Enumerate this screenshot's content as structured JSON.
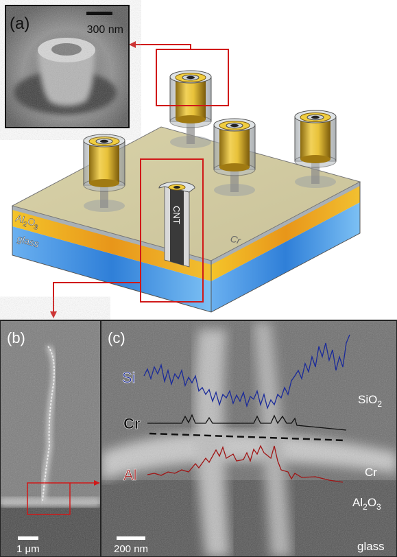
{
  "panel_a": {
    "label": "(a)",
    "scale_bar": "300 nm"
  },
  "schematic": {
    "layers": {
      "al2o3": [
        "Al",
        "2",
        "O",
        "3"
      ],
      "glass": "glass",
      "cr": "Cr"
    },
    "cnt": "CNT"
  },
  "panel_b": {
    "label": "(b)",
    "scale_bar": "1 μm"
  },
  "panel_c": {
    "label": "(c)",
    "profiles": {
      "si": "Si",
      "cr": "Cr",
      "al": "Al"
    },
    "layers": {
      "sio2": [
        "SiO",
        "2"
      ],
      "cr": "Cr",
      "al2o3": [
        "Al",
        "2",
        "O",
        "3"
      ],
      "glass": "glass"
    },
    "scale_bar": "200 nm"
  }
}
